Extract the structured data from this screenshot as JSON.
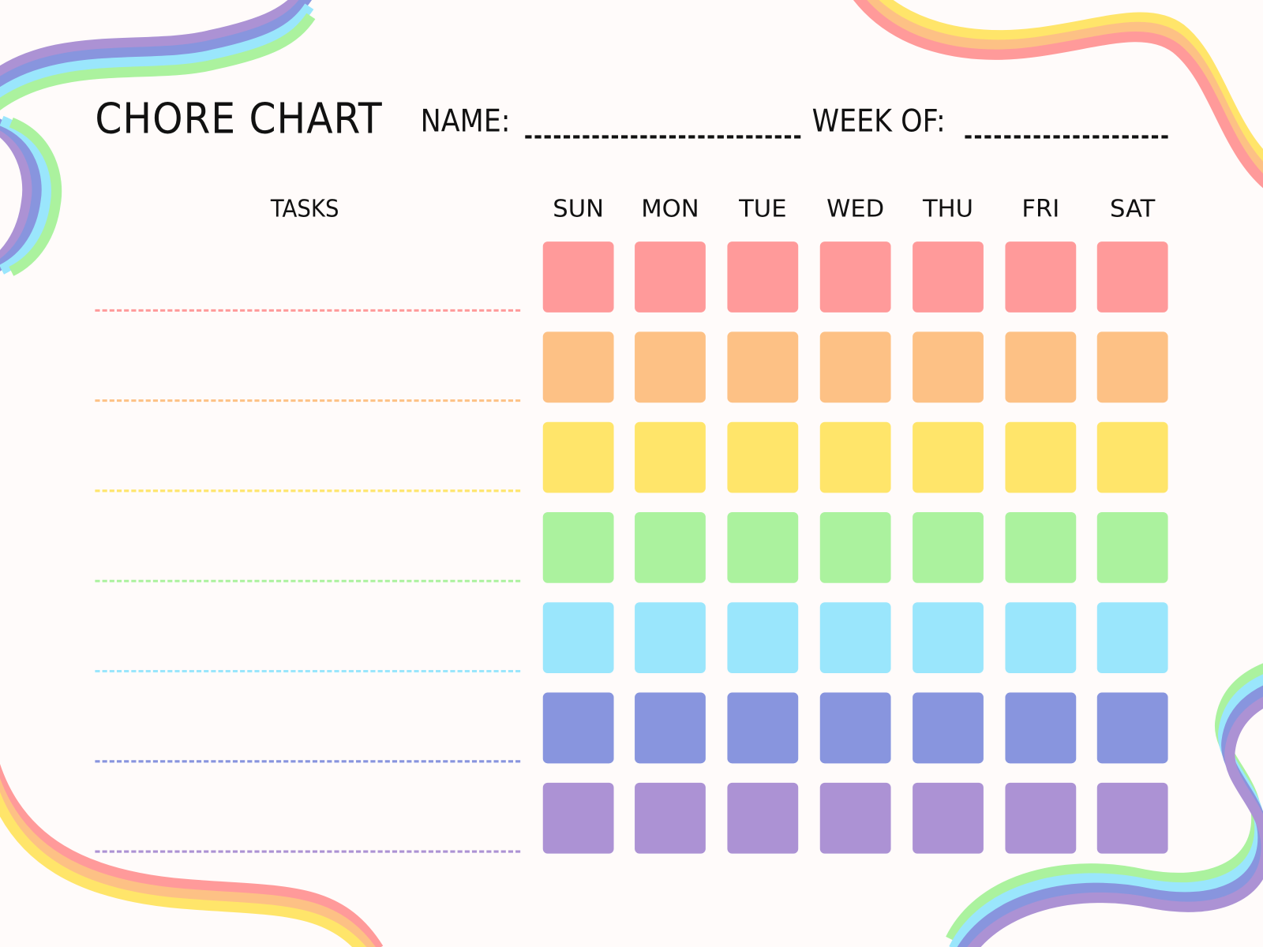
{
  "header": {
    "title": "CHORE CHART",
    "name_label": "NAME:",
    "week_label": "WEEK OF:"
  },
  "tasks_header": "TASKS",
  "days": [
    "SUN",
    "MON",
    "TUE",
    "WED",
    "THU",
    "FRI",
    "SAT"
  ],
  "row_colors": [
    "#FF9A9A",
    "#FDC185",
    "#FFE56A",
    "#ABF29E",
    "#9AE6FC",
    "#8895DE",
    "#AC92D4"
  ],
  "background": "#FFFBFA"
}
